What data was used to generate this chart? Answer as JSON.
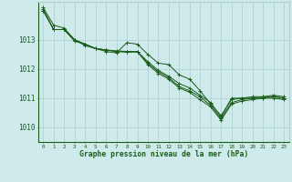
{
  "xlabel": "Graphe pression niveau de la mer (hPa)",
  "background_color": "#ceeaea",
  "grid_color": "#aed0d0",
  "line_color": "#1a5c1a",
  "marker_color": "#1a5c1a",
  "xlim": [
    -0.5,
    23.5
  ],
  "ylim": [
    1009.5,
    1014.3
  ],
  "yticks": [
    1010,
    1011,
    1012,
    1013
  ],
  "xticks": [
    0,
    1,
    2,
    3,
    4,
    5,
    6,
    7,
    8,
    9,
    10,
    11,
    12,
    13,
    14,
    15,
    16,
    17,
    18,
    19,
    20,
    21,
    22,
    23
  ],
  "series": [
    {
      "x": [
        0,
        1,
        2,
        3,
        4,
        5,
        6,
        7,
        8,
        9,
        10,
        11,
        12,
        13,
        14,
        15,
        16,
        17,
        18,
        19,
        20,
        21,
        22,
        23
      ],
      "y": [
        1014.1,
        1013.5,
        1013.4,
        1013.0,
        1012.8,
        1012.7,
        1012.6,
        1012.55,
        1012.9,
        1012.85,
        1012.5,
        1012.2,
        1012.15,
        1011.8,
        1011.65,
        1011.25,
        1010.8,
        1010.4,
        1010.95,
        1011.0,
        1011.05,
        1011.05,
        1011.1,
        1011.05
      ]
    },
    {
      "x": [
        0,
        1,
        2,
        3,
        4,
        5,
        6,
        7,
        8,
        9,
        10,
        11,
        12,
        13,
        14,
        15,
        16,
        17,
        18,
        19,
        20,
        21,
        22,
        23
      ],
      "y": [
        1014.05,
        1013.35,
        1013.35,
        1013.0,
        1012.85,
        1012.7,
        1012.65,
        1012.62,
        1012.6,
        1012.6,
        1012.25,
        1011.95,
        1011.75,
        1011.5,
        1011.35,
        1011.1,
        1010.85,
        1010.35,
        1011.0,
        1011.0,
        1011.0,
        1011.05,
        1011.05,
        1011.0
      ]
    },
    {
      "x": [
        0,
        1,
        2,
        3,
        4,
        5,
        6,
        7,
        8,
        9,
        10,
        11,
        12,
        13,
        14,
        15,
        16,
        17,
        18,
        19,
        20,
        21,
        22,
        23
      ],
      "y": [
        1014.0,
        1013.35,
        1013.35,
        1013.0,
        1012.85,
        1012.7,
        1012.65,
        1012.6,
        1012.58,
        1012.58,
        1012.2,
        1011.9,
        1011.7,
        1011.4,
        1011.25,
        1011.05,
        1010.75,
        1010.3,
        1010.85,
        1010.95,
        1011.0,
        1011.0,
        1011.05,
        1011.0
      ]
    },
    {
      "x": [
        0,
        1,
        2,
        3,
        4,
        5,
        6,
        7,
        8,
        9,
        10,
        11,
        12,
        13,
        14,
        15,
        16,
        17,
        18,
        19,
        20,
        21,
        22,
        23
      ],
      "y": [
        1014.0,
        1013.35,
        1013.35,
        1012.95,
        1012.85,
        1012.7,
        1012.65,
        1012.6,
        1012.58,
        1012.6,
        1012.15,
        1011.85,
        1011.65,
        1011.35,
        1011.2,
        1010.95,
        1010.7,
        1010.25,
        1010.8,
        1010.9,
        1010.95,
        1011.0,
        1011.0,
        1010.95
      ]
    }
  ]
}
